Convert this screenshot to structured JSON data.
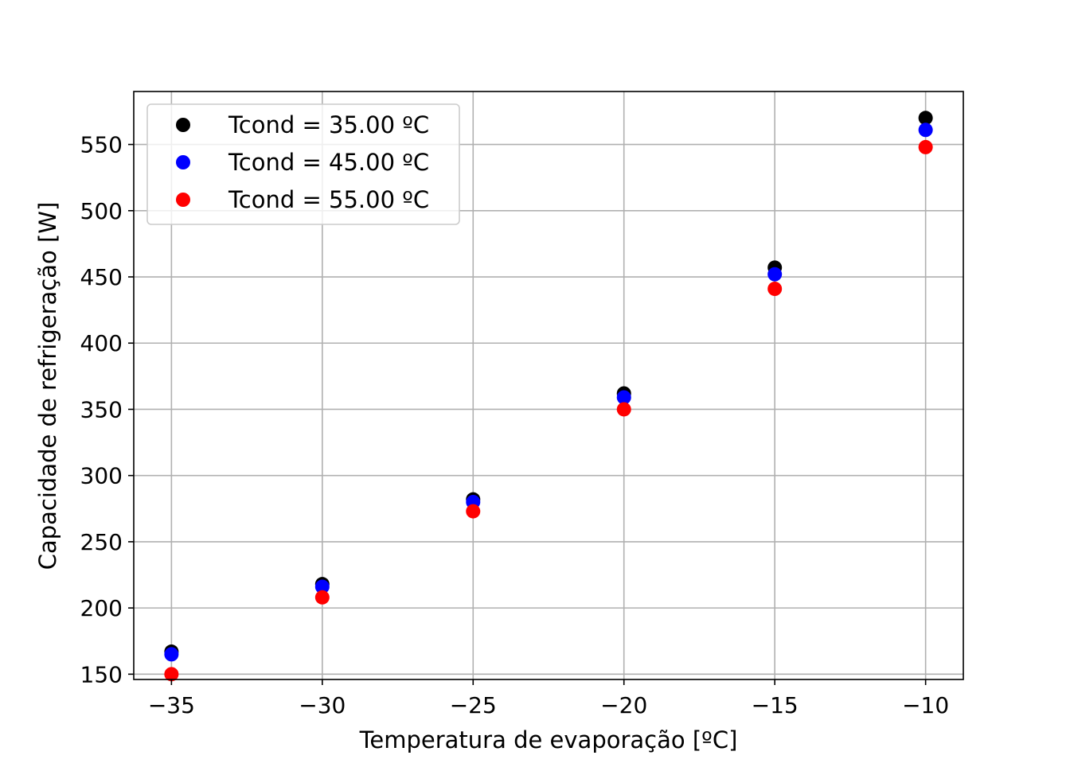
{
  "chart_data": {
    "type": "scatter",
    "title": "",
    "xlabel": "Temperatura de evaporação [ºC]",
    "ylabel": "Capacidade de refrigeração [W]",
    "xlim": [
      -36.25,
      -8.75
    ],
    "ylim": [
      146,
      590
    ],
    "xticks": [
      -35,
      -30,
      -25,
      -20,
      -15,
      -10
    ],
    "xtick_labels": [
      "−35",
      "−30",
      "−25",
      "−20",
      "−15",
      "−10"
    ],
    "yticks": [
      150,
      200,
      250,
      300,
      350,
      400,
      450,
      500,
      550
    ],
    "ytick_labels": [
      "150",
      "200",
      "250",
      "300",
      "350",
      "400",
      "450",
      "500",
      "550"
    ],
    "grid": true,
    "legend_position": "top-left",
    "x": [
      -35,
      -30,
      -25,
      -20,
      -15,
      -10
    ],
    "series": [
      {
        "name": "Tcond = 35.00 ºC",
        "color": "#000000",
        "values": [
          167,
          218,
          282,
          362,
          457,
          570
        ]
      },
      {
        "name": "Tcond = 45.00 ºC",
        "color": "#0000ff",
        "values": [
          165,
          216,
          280,
          359,
          452,
          561
        ]
      },
      {
        "name": "Tcond = 55.00 ºC",
        "color": "#ff0000",
        "values": [
          150,
          208,
          273,
          350,
          441,
          548
        ]
      }
    ]
  }
}
